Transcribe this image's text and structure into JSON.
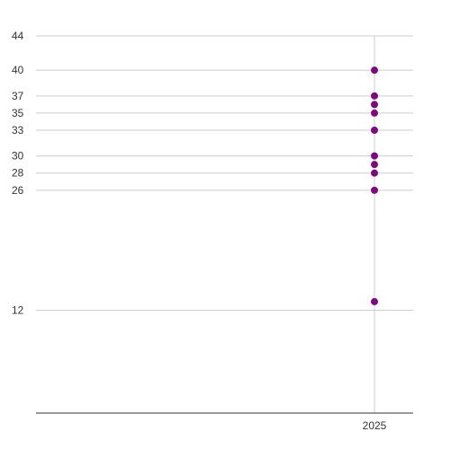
{
  "chart_data": {
    "type": "scatter",
    "title": "",
    "xlabel": "",
    "ylabel": "",
    "x_ticks": [
      "2025"
    ],
    "y_ticks": [
      44,
      40,
      37,
      35,
      33,
      30,
      28,
      26,
      12
    ],
    "ylim": [
      0,
      44
    ],
    "grid": true,
    "series": [
      {
        "color": "#7b0a7b",
        "points": [
          {
            "x": "2025",
            "y": 40
          },
          {
            "x": "2025",
            "y": 37
          },
          {
            "x": "2025",
            "y": 36
          },
          {
            "x": "2025",
            "y": 35
          },
          {
            "x": "2025",
            "y": 33
          },
          {
            "x": "2025",
            "y": 30
          },
          {
            "x": "2025",
            "y": 29
          },
          {
            "x": "2025",
            "y": 28
          },
          {
            "x": "2025",
            "y": 26
          },
          {
            "x": "2025",
            "y": 13
          }
        ]
      }
    ]
  }
}
